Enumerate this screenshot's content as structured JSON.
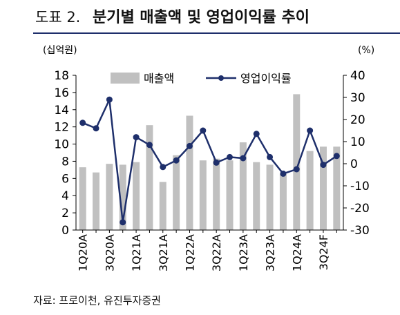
{
  "title": {
    "label": "도표 2.",
    "text": "분기별 매출액 및 영업이익률 추이"
  },
  "source": "자료: 프로이천, 유진투자증권",
  "chart_data": {
    "type": "bar+line",
    "left_unit": "(십억원)",
    "right_unit": "(%)",
    "categories": [
      "1Q20A",
      "2Q20A",
      "3Q20A",
      "4Q20A",
      "1Q21A",
      "2Q21A",
      "3Q21A",
      "4Q21A",
      "1Q22A",
      "2Q22A",
      "3Q22A",
      "4Q22A",
      "1Q23A",
      "2Q23A",
      "3Q23A",
      "4Q23A",
      "1Q24A",
      "2Q24A",
      "3Q24F",
      "4Q24F"
    ],
    "x_tick_labels": [
      "1Q20A",
      "",
      "3Q20A",
      "",
      "1Q21A",
      "",
      "3Q21A",
      "",
      "1Q22A",
      "",
      "3Q22A",
      "",
      "1Q23A",
      "",
      "3Q23A",
      "",
      "1Q24A",
      "",
      "3Q24F",
      ""
    ],
    "series": [
      {
        "name": "매출액",
        "type": "bar",
        "axis": "left",
        "color": "#c0c0c0",
        "values": [
          7.3,
          6.7,
          7.7,
          7.6,
          7.9,
          12.2,
          5.6,
          8.7,
          13.3,
          8.1,
          8.3,
          8.1,
          10.2,
          7.9,
          7.6,
          6.5,
          15.8,
          9.2,
          9.7,
          9.7
        ]
      },
      {
        "name": "영업이익률",
        "type": "line",
        "axis": "right",
        "color": "#1e2f6b",
        "values": [
          18.5,
          16.0,
          29.0,
          -26.5,
          12.0,
          8.5,
          -1.5,
          1.5,
          8.0,
          15.0,
          0.5,
          3.0,
          2.5,
          13.5,
          3.0,
          -4.5,
          -2.5,
          15.0,
          -0.5,
          3.5
        ]
      }
    ],
    "y_left": {
      "ticks": [
        0,
        2,
        4,
        6,
        8,
        10,
        12,
        14,
        16,
        18
      ],
      "range": [
        0,
        18
      ]
    },
    "y_right": {
      "ticks": [
        -30,
        -20,
        -10,
        0,
        10,
        20,
        30,
        40
      ],
      "range": [
        -30,
        40
      ]
    },
    "legend": [
      "매출액",
      "영업이익률"
    ],
    "legend_position": "top-center",
    "grid": false
  }
}
